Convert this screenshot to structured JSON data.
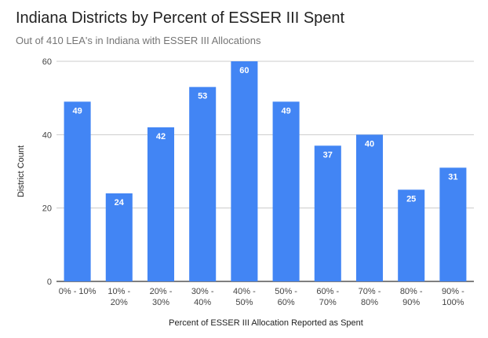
{
  "chart_data": {
    "type": "bar",
    "title": "Indiana Districts by Percent of ESSER III Spent",
    "subtitle": "Out of 410 LEA's in Indiana with ESSER III Allocations",
    "xlabel": "Percent of ESSER III Allocation Reported as Spent",
    "ylabel": "District Count",
    "categories": [
      [
        "0% - 10%"
      ],
      [
        "10% -",
        "20%"
      ],
      [
        "20% -",
        "30%"
      ],
      [
        "30% -",
        "40%"
      ],
      [
        "40% -",
        "50%"
      ],
      [
        "50% -",
        "60%"
      ],
      [
        "60% -",
        "70%"
      ],
      [
        "70% -",
        "80%"
      ],
      [
        "80% -",
        "90%"
      ],
      [
        "90% -",
        "100%"
      ]
    ],
    "values": [
      49,
      24,
      42,
      53,
      60,
      49,
      37,
      40,
      25,
      31
    ],
    "ylim": [
      0,
      60
    ],
    "yticks": [
      0,
      20,
      40,
      60
    ],
    "grid": true,
    "legend": "none",
    "colors": {
      "bar": "#4285f4",
      "grid": "#cccccc",
      "axis": "#333333"
    }
  }
}
